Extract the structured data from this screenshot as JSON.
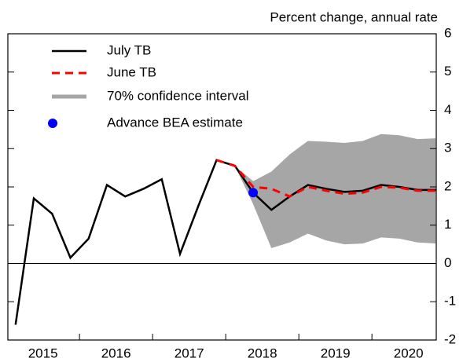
{
  "chart_data": {
    "type": "line",
    "title": "Percent change, annual rate",
    "xlim": [
      2015.02,
      2020.88
    ],
    "xticks": [
      {
        "value": 2015.5,
        "label": "2015"
      },
      {
        "value": 2016.5,
        "label": "2016"
      },
      {
        "value": 2017.5,
        "label": "2017"
      },
      {
        "value": 2018.5,
        "label": "2018"
      },
      {
        "value": 2019.5,
        "label": "2019"
      },
      {
        "value": 2020.5,
        "label": "2020"
      }
    ],
    "xminor": [
      2016,
      2017,
      2018,
      2019,
      2020
    ],
    "ylim": [
      -2,
      6
    ],
    "yticks": [
      -2,
      -1,
      0,
      1,
      2,
      3,
      4,
      5,
      6
    ],
    "band": {
      "name": "70% confidence interval",
      "color": "#a6a6a6",
      "x": [
        2018.125,
        2018.375,
        2018.625,
        2018.875,
        2019.125,
        2019.375,
        2019.625,
        2019.875,
        2020.125,
        2020.375,
        2020.625,
        2020.875
      ],
      "lower": [
        2.55,
        1.55,
        0.4,
        0.55,
        0.78,
        0.6,
        0.5,
        0.52,
        0.68,
        0.65,
        0.55,
        0.52
      ],
      "upper": [
        2.55,
        2.15,
        2.4,
        2.85,
        3.2,
        3.18,
        3.15,
        3.2,
        3.38,
        3.35,
        3.25,
        3.27
      ]
    },
    "series": [
      {
        "name": "July TB",
        "color": "#000000",
        "x": [
          2015.125,
          2015.375,
          2015.625,
          2015.875,
          2016.125,
          2016.375,
          2016.625,
          2016.875,
          2017.125,
          2017.375,
          2017.625,
          2017.875,
          2018.125,
          2018.375,
          2018.625,
          2018.875,
          2019.125,
          2019.375,
          2019.625,
          2019.875,
          2020.125,
          2020.375,
          2020.625,
          2020.875
        ],
        "values": [
          -1.6,
          1.7,
          1.3,
          0.15,
          0.65,
          2.05,
          1.75,
          1.95,
          2.2,
          0.25,
          1.5,
          2.7,
          2.55,
          1.85,
          1.4,
          1.75,
          2.05,
          1.95,
          1.87,
          1.9,
          2.05,
          2.0,
          1.92,
          1.92
        ]
      },
      {
        "name": "June TB",
        "color": "#ff0000",
        "dashed": true,
        "x": [
          2017.875,
          2018.125,
          2018.375,
          2018.625,
          2018.875,
          2019.125,
          2019.375,
          2019.625,
          2019.875,
          2020.125,
          2020.375,
          2020.625,
          2020.875
        ],
        "values": [
          2.7,
          2.55,
          2.0,
          1.95,
          1.75,
          2.0,
          1.9,
          1.82,
          1.85,
          2.0,
          1.98,
          1.9,
          1.9
        ]
      }
    ],
    "point": {
      "name": "Advance BEA estimate",
      "color": "#0000ff",
      "x": 2018.375,
      "value": 1.85
    }
  }
}
